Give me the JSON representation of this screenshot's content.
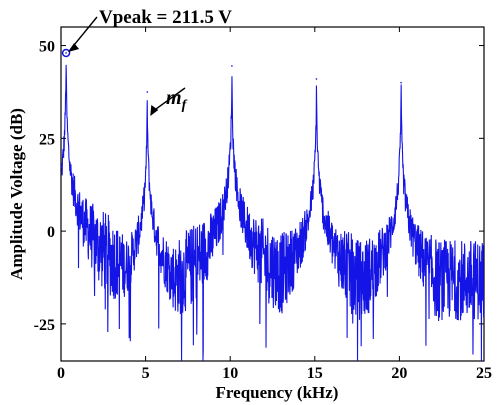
{
  "chart_data": {
    "type": "line",
    "title": "",
    "xlabel": "Frequency (kHz)",
    "ylabel": "Amplitude Voltage (dB)",
    "xlim": [
      0,
      25
    ],
    "ylim": [
      -35,
      55
    ],
    "x_ticks": [
      0,
      5,
      10,
      15,
      20,
      25
    ],
    "y_ticks": [
      50,
      25,
      0,
      -25
    ],
    "grid": false,
    "line_color": "#1414e6",
    "peaks": [
      {
        "x": 0.3,
        "y": 48
      },
      {
        "x": 5.1,
        "y": 37.5
      },
      {
        "x": 10.1,
        "y": 44.5
      },
      {
        "x": 15.1,
        "y": 41
      },
      {
        "x": 20.1,
        "y": 40
      }
    ],
    "noise_floor_db": -12,
    "annotations": [
      {
        "text": "Vpeak = 211.5 V",
        "points_to": {
          "x": 0.3,
          "y": 48
        }
      },
      {
        "text_base": "m",
        "text_sub": "f",
        "points_to": {
          "x": 5.1,
          "y": 37.5
        }
      }
    ]
  }
}
